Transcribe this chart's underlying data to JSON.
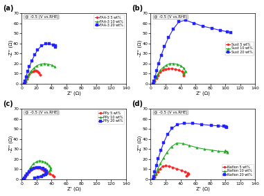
{
  "title_annotation": "@ -0.5 (V vs.RHE)",
  "xlabel": "Z' (Ω)",
  "ylabel": "-Z'' (Ω)",
  "xlim": [
    0,
    140
  ],
  "ylim": [
    0,
    70
  ],
  "xticks": [
    0,
    20,
    40,
    60,
    80,
    100,
    120,
    140
  ],
  "yticks": [
    0,
    10,
    20,
    30,
    40,
    50,
    60,
    70
  ],
  "panels": [
    {
      "label": "(a)",
      "legend_loc": "upper right",
      "legend_bbox": null,
      "series": [
        {
          "name": "FAA-3 5 wt%",
          "color": "#FF2222",
          "marker": "o",
          "x": [
            4.5,
            5.5,
            7.0,
            8.5,
            10.5,
            13.0,
            15.5,
            17.5,
            19.5,
            21.5,
            23.5,
            25.0
          ],
          "y": [
            0.3,
            2.0,
            4.5,
            7.0,
            9.5,
            11.5,
            12.5,
            13.0,
            13.0,
            12.5,
            11.0,
            9.0
          ]
        },
        {
          "name": "FAA-3 10 wt%",
          "color": "#22AA22",
          "marker": "^",
          "x": [
            4.5,
            5.5,
            7.5,
            9.5,
            12.5,
            16.5,
            20.5,
            25.5,
            30.5,
            35.5,
            40.5,
            44.5
          ],
          "y": [
            0.3,
            2.5,
            5.5,
            9.0,
            12.5,
            15.5,
            18.0,
            19.5,
            20.0,
            19.5,
            18.5,
            17.0
          ]
        },
        {
          "name": "FAA-3 20 wt%",
          "color": "#2222FF",
          "marker": "s",
          "x": [
            3.5,
            4.5,
            6.0,
            8.0,
            10.5,
            13.5,
            17.5,
            21.5,
            26.5,
            32.0,
            37.5,
            42.5,
            45.5,
            45.0
          ],
          "y": [
            0.3,
            3.0,
            7.0,
            12.0,
            17.0,
            22.5,
            28.5,
            33.5,
            37.5,
            39.5,
            39.5,
            38.5,
            37.5,
            36.5
          ]
        }
      ]
    },
    {
      "label": "(b)",
      "legend_loc": "center right",
      "legend_bbox": null,
      "series": [
        {
          "name": "Sust 5 wt%",
          "color": "#FF2222",
          "marker": "o",
          "x": [
            4.0,
            5.5,
            7.5,
            10.0,
            13.0,
            16.5,
            20.0,
            24.0,
            28.5,
            33.0,
            37.5,
            42.0,
            44.5,
            44.0
          ],
          "y": [
            0.3,
            2.5,
            5.5,
            8.5,
            11.5,
            13.5,
            14.5,
            15.0,
            15.0,
            14.5,
            13.5,
            12.0,
            10.0,
            8.0
          ]
        },
        {
          "name": "Sust 10 wt%",
          "color": "#22AA22",
          "marker": "^",
          "x": [
            4.0,
            5.5,
            7.5,
            10.0,
            13.0,
            17.0,
            21.0,
            25.5,
            30.5,
            35.5,
            40.0,
            44.5,
            46.5,
            44.5
          ],
          "y": [
            0.3,
            3.0,
            6.5,
            10.0,
            13.5,
            16.5,
            18.5,
            20.0,
            20.0,
            19.5,
            18.0,
            15.5,
            12.5,
            10.0
          ]
        },
        {
          "name": "Sust 20 wt%",
          "color": "#2222FF",
          "marker": "s",
          "x": [
            3.5,
            4.5,
            6.0,
            8.0,
            10.5,
            14.0,
            18.5,
            24.0,
            30.5,
            38.0,
            47.0,
            58.0,
            70.0,
            82.0,
            93.0,
            103.0,
            107.0
          ],
          "y": [
            0.3,
            3.0,
            7.0,
            13.0,
            20.0,
            28.0,
            37.0,
            46.0,
            54.5,
            61.5,
            63.0,
            60.0,
            57.0,
            55.0,
            53.0,
            51.5,
            51.0
          ]
        }
      ]
    },
    {
      "label": "(c)",
      "legend_loc": "upper right",
      "legend_bbox": null,
      "series": [
        {
          "name": "PPy 5 wt%",
          "color": "#FF2222",
          "marker": "o",
          "x": [
            3.5,
            5.0,
            7.0,
            9.5,
            12.0,
            14.5,
            17.0,
            19.0,
            21.0,
            22.5,
            24.0,
            25.5,
            27.0,
            28.5,
            30.5,
            34.0,
            38.0,
            41.5,
            44.0
          ],
          "y": [
            0.3,
            2.0,
            4.5,
            7.0,
            9.0,
            10.5,
            11.5,
            12.0,
            12.0,
            12.0,
            11.5,
            11.0,
            10.5,
            9.5,
            8.5,
            7.0,
            5.5,
            4.0,
            3.0
          ]
        },
        {
          "name": "PPy 10 wt%",
          "color": "#22AA22",
          "marker": "^",
          "x": [
            3.5,
            5.0,
            7.0,
            9.5,
            12.5,
            16.0,
            20.0,
            24.0,
            28.0,
            31.5,
            34.5,
            37.0,
            38.5,
            38.5,
            37.0,
            34.0,
            30.0,
            25.5,
            20.5
          ],
          "y": [
            0.3,
            2.5,
            5.5,
            9.0,
            12.5,
            15.5,
            17.5,
            18.5,
            18.0,
            17.0,
            15.5,
            13.5,
            11.5,
            9.5,
            8.0,
            6.5,
            5.0,
            3.5,
            2.5
          ]
        },
        {
          "name": "PPy 20 wt%",
          "color": "#2222FF",
          "marker": "s",
          "x": [
            3.0,
            4.0,
            5.5,
            7.5,
            10.0,
            13.0,
            16.5,
            20.5,
            24.5,
            28.5,
            31.5,
            33.0,
            33.5,
            32.0,
            29.5,
            26.5,
            22.5,
            18.0
          ],
          "y": [
            0.3,
            1.5,
            3.5,
            5.5,
            7.5,
            9.5,
            11.0,
            12.0,
            12.0,
            11.0,
            9.5,
            8.0,
            6.5,
            5.0,
            4.0,
            3.0,
            2.0,
            1.5
          ]
        }
      ]
    },
    {
      "label": "(d)",
      "legend_loc": "lower right",
      "legend_bbox": null,
      "series": [
        {
          "name": "Nafion 5 wt%",
          "color": "#FF2222",
          "marker": "o",
          "x": [
            3.5,
            5.0,
            7.0,
            9.5,
            12.5,
            16.0,
            20.0,
            24.5,
            29.5,
            35.0,
            41.0,
            46.0,
            49.5,
            50.5,
            50.0,
            47.5
          ],
          "y": [
            0.3,
            2.0,
            4.5,
            7.5,
            10.5,
            13.0,
            13.5,
            13.0,
            12.0,
            10.5,
            9.0,
            7.5,
            6.5,
            5.5,
            4.5,
            3.5
          ]
        },
        {
          "name": "Nafion 10 wt%",
          "color": "#22AA22",
          "marker": "^",
          "x": [
            3.5,
            5.0,
            7.0,
            9.5,
            13.0,
            17.0,
            22.0,
            28.0,
            35.0,
            43.0,
            52.0,
            62.0,
            72.0,
            82.0,
            91.0,
            99.0,
            103.0,
            103.0,
            100.0
          ],
          "y": [
            0.3,
            2.5,
            6.0,
            10.5,
            15.5,
            21.0,
            27.0,
            32.5,
            36.0,
            35.5,
            33.5,
            31.5,
            30.0,
            29.0,
            28.0,
            27.5,
            27.0,
            27.5,
            28.5
          ]
        },
        {
          "name": "Nafion 20 wt%",
          "color": "#2222FF",
          "marker": "s",
          "x": [
            3.0,
            4.0,
            5.5,
            7.5,
            10.0,
            13.5,
            17.5,
            22.5,
            28.5,
            36.0,
            45.0,
            56.0,
            68.0,
            81.0,
            91.0,
            98.0,
            101.0,
            101.5
          ],
          "y": [
            0.3,
            3.0,
            7.5,
            13.5,
            20.5,
            28.5,
            36.5,
            44.5,
            50.5,
            54.5,
            55.5,
            55.5,
            54.5,
            53.5,
            53.0,
            52.5,
            52.0,
            51.5
          ]
        }
      ]
    }
  ]
}
